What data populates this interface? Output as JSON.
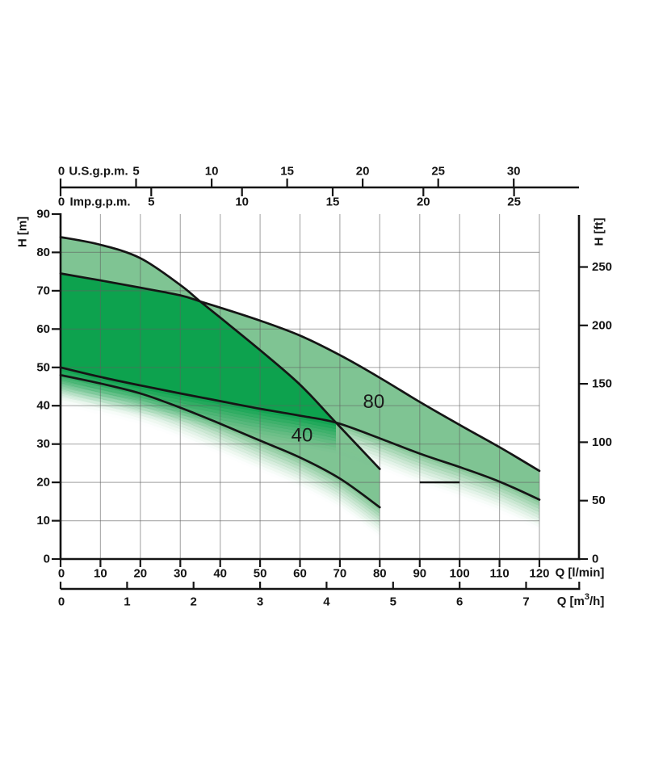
{
  "chart_data": {
    "type": "area",
    "description": "Pump performance chart: head H versus flow Q with shaded duty bands for models 40 and 80",
    "axes": {
      "top_us": {
        "label": "U.S.g.p.m.",
        "ticks": [
          0,
          5,
          10,
          15,
          20,
          25,
          30
        ]
      },
      "top_imp": {
        "label": "Imp.g.p.m.",
        "ticks": [
          0,
          5,
          10,
          15,
          20,
          25
        ]
      },
      "bottom_lpm": {
        "label": "Q [l/min]",
        "ticks": [
          0,
          10,
          20,
          30,
          40,
          50,
          60,
          70,
          80,
          90,
          100,
          110,
          120
        ],
        "range": [
          0,
          120
        ]
      },
      "bottom_m3h": {
        "label": "Q [m³/h]",
        "ticks": [
          0,
          1,
          2,
          3,
          4,
          5,
          6,
          7
        ]
      },
      "left_m": {
        "label": "H [m]",
        "ticks": [
          0,
          10,
          20,
          30,
          40,
          50,
          60,
          70,
          80,
          90
        ],
        "range": [
          0,
          90
        ]
      },
      "right_ft": {
        "label": "H [ft]",
        "ticks": [
          0,
          50,
          100,
          150,
          200,
          250
        ]
      },
      "grid": {
        "x_step_lpm": 10,
        "y_step_m": 10,
        "h_gridlines_m": [
          10,
          20,
          30,
          40,
          50,
          60,
          70,
          80
        ]
      }
    },
    "series": [
      {
        "name": "40-upper",
        "points": [
          [
            0,
            84
          ],
          [
            10,
            82
          ],
          [
            20,
            78.5
          ],
          [
            30,
            71.5
          ],
          [
            35,
            67.2
          ],
          [
            40,
            63
          ],
          [
            50,
            54.5
          ],
          [
            60,
            45.5
          ],
          [
            69,
            35.6
          ],
          [
            80,
            23.5
          ]
        ]
      },
      {
        "name": "40-lower",
        "points": [
          [
            0,
            48
          ],
          [
            10,
            45.8
          ],
          [
            20,
            43.2
          ],
          [
            30,
            39.5
          ],
          [
            40,
            35.3
          ],
          [
            50,
            30.9
          ],
          [
            60,
            26.5
          ],
          [
            70,
            21
          ],
          [
            80,
            13.5
          ]
        ]
      },
      {
        "name": "80-upper",
        "points": [
          [
            0,
            74.5
          ],
          [
            10,
            72.7
          ],
          [
            20,
            70.8
          ],
          [
            30,
            68.8
          ],
          [
            35,
            67.2
          ],
          [
            40,
            65.6
          ],
          [
            50,
            62.2
          ],
          [
            60,
            58.3
          ],
          [
            70,
            53.2
          ],
          [
            80,
            47.3
          ],
          [
            90,
            41
          ],
          [
            100,
            35
          ],
          [
            110,
            29.2
          ],
          [
            120,
            23
          ]
        ]
      },
      {
        "name": "80-lower",
        "points": [
          [
            0,
            50
          ],
          [
            10,
            47.5
          ],
          [
            20,
            45.3
          ],
          [
            30,
            43.2
          ],
          [
            40,
            41.2
          ],
          [
            50,
            39.2
          ],
          [
            60,
            37.4
          ],
          [
            69,
            35.6
          ],
          [
            80,
            31.5
          ],
          [
            90,
            27.5
          ],
          [
            100,
            24
          ],
          [
            110,
            20.2
          ],
          [
            120,
            15.5
          ]
        ]
      }
    ],
    "bands": [
      {
        "model": "40",
        "label": "40",
        "label_q": 60.5,
        "label_h": 32.2,
        "upper": "40-upper",
        "lower": "40-lower",
        "q_max": 80
      },
      {
        "model": "80",
        "label": "80",
        "label_q": 78.5,
        "label_h": 41.0,
        "upper": "80-upper",
        "lower": "80-lower",
        "q_max": 120
      }
    ],
    "overlap": {
      "upper_crossing_q": 35,
      "upper_crossing_h": 67.2,
      "lower_crossing_q": 69,
      "lower_crossing_h": 35.6
    },
    "marker": {
      "h": 20,
      "q_start": 90,
      "q_end": 100
    },
    "fade": {
      "depth_m": 8,
      "steps": 10
    },
    "colors": {
      "band_light": "#7fc493",
      "band_dark": "#0da24e",
      "curve": "#151515",
      "grid": "#5f5f5f",
      "axis": "#141414",
      "text": "#141414",
      "band_label": "#1a1a1a"
    }
  }
}
